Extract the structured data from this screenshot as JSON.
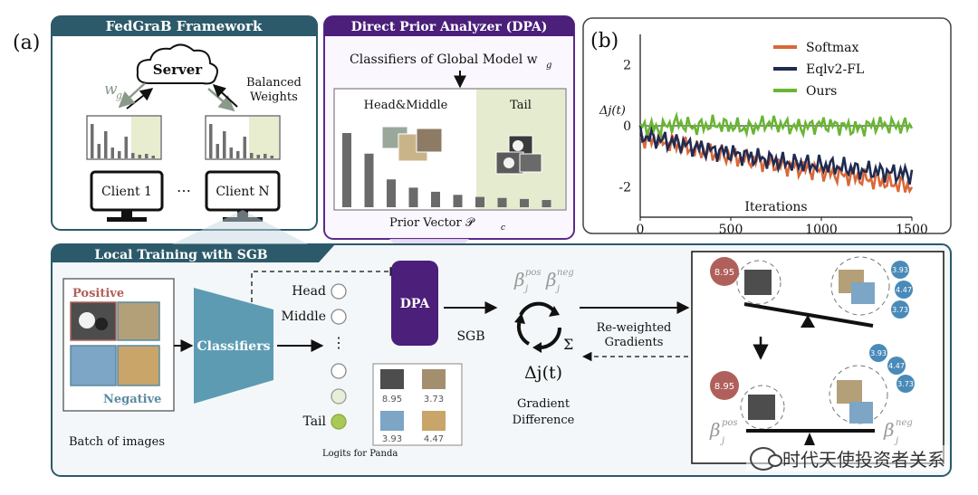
{
  "labels": {
    "panel_a": "(a)",
    "panel_b": "(b)"
  },
  "fedgrab": {
    "title": "FedGraB Framework",
    "server": "Server",
    "wg": "w",
    "wg_sub": "g",
    "balanced_1": "Balanced",
    "balanced_2": "Weights",
    "client1": "Client 1",
    "dots": "⋯",
    "clientN": "Client N"
  },
  "dpa_box": {
    "title": "Direct Prior Analyzer (DPA)",
    "classifiers": "Classifiers of Global Model w",
    "classifiers_sub": "g",
    "head_middle": "Head&Middle",
    "tail": "Tail",
    "prior_vector": "Prior Vector 𝒫",
    "prior_sub": "c",
    "bars": [
      0.72,
      0.52,
      0.27,
      0.19,
      0.15,
      0.12,
      0.1,
      0.09,
      0.08,
      0.07
    ]
  },
  "chart_data": {
    "type": "line",
    "xlabel": "Iterations",
    "ylabel": "Δj(t)",
    "xlim": [
      0,
      1500
    ],
    "ylim": [
      -3,
      3
    ],
    "xticks": [
      0,
      500,
      1000,
      1500
    ],
    "yticks": [
      2,
      0,
      -2
    ],
    "legend_position": "top-right",
    "series": [
      {
        "name": "Softmax",
        "color": "#d9683a",
        "x": [
          0,
          100,
          200,
          300,
          400,
          500,
          600,
          700,
          800,
          900,
          1000,
          1100,
          1200,
          1300,
          1400,
          1500
        ],
        "values": [
          -0.4,
          -0.5,
          -0.6,
          -0.8,
          -0.9,
          -1.0,
          -1.1,
          -1.2,
          -1.3,
          -1.4,
          -1.5,
          -1.6,
          -1.7,
          -1.8,
          -1.9,
          -2.0
        ]
      },
      {
        "name": "Eqlv2-FL",
        "color": "#1f2b52",
        "x": [
          0,
          100,
          200,
          300,
          400,
          500,
          600,
          700,
          800,
          900,
          1000,
          1100,
          1200,
          1300,
          1400,
          1500
        ],
        "values": [
          -0.3,
          -0.45,
          -0.55,
          -0.7,
          -0.8,
          -0.9,
          -1.0,
          -1.1,
          -1.2,
          -1.25,
          -1.3,
          -1.35,
          -1.45,
          -1.5,
          -1.55,
          -1.6
        ]
      },
      {
        "name": "Ours",
        "color": "#6ab535",
        "x": [
          0,
          100,
          200,
          300,
          400,
          500,
          600,
          700,
          800,
          900,
          1000,
          1100,
          1200,
          1300,
          1400,
          1500
        ],
        "values": [
          0.0,
          -0.1,
          0.1,
          -0.05,
          0.05,
          0.0,
          -0.1,
          0.1,
          0.0,
          -0.05,
          0.05,
          0.0,
          -0.1,
          0.05,
          0.0,
          0.0
        ]
      }
    ]
  },
  "local": {
    "title": "Local Training with SGB",
    "positive": "Positive",
    "negative": "Negative",
    "batch": "Batch of images",
    "classifiers": "Classifiers",
    "head": "Head",
    "middle": "Middle",
    "vdots": "⋮",
    "tail": "Tail",
    "dpa": "DPA",
    "sgb": "SGB",
    "beta_pos": "β",
    "beta_pos_sup": "pos",
    "beta_pos_sub": "j",
    "beta_neg": "β",
    "beta_neg_sup": "neg",
    "beta_neg_sub": "j",
    "sigma": "Σ",
    "delta": "Δj(t)",
    "gradient": "Gradient",
    "difference": "Difference",
    "reweighted_1": "Re-weighted",
    "reweighted_2": "Gradients",
    "logits_label": "Logits for Panda",
    "logits": [
      "8.95",
      "3.73",
      "3.93",
      "4.47"
    ]
  },
  "balance": {
    "top_left_val": "8.95",
    "top_right_vals": [
      "3.93",
      "4.47",
      "3.73"
    ],
    "bottom_left_val": "8.95",
    "bottom_right_vals": [
      "3.93",
      "4.47",
      "3.73"
    ]
  },
  "watermark": "时代天使投资者关系"
}
